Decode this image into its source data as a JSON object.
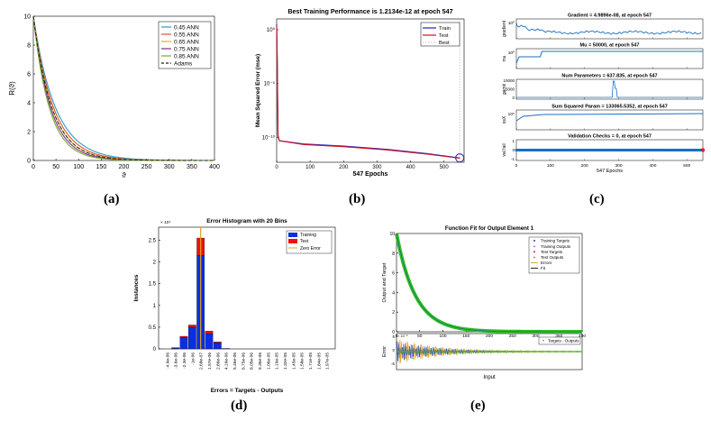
{
  "captions": {
    "a": "(a)",
    "b": "(b)",
    "c": "(c)",
    "d": "(d)",
    "e": "(e)"
  },
  "chart_data": [
    {
      "id": "a",
      "type": "line",
      "title": "",
      "xlabel": "ϑ",
      "ylabel": "R(ϑ)",
      "xlim": [
        0,
        400
      ],
      "ylim": [
        0,
        10
      ],
      "xticks": [
        0,
        50,
        100,
        150,
        200,
        250,
        300,
        350,
        400
      ],
      "yticks": [
        0,
        2,
        4,
        6,
        8,
        10
      ],
      "legend_position": "top-right",
      "series": [
        {
          "name": "0.45 ANN",
          "color": "#2e9ad0",
          "decay": 0.0205
        },
        {
          "name": "0.55 ANN",
          "color": "#d9541a",
          "decay": 0.0225
        },
        {
          "name": "0.65 ANN",
          "color": "#e0b31a",
          "decay": 0.0245
        },
        {
          "name": "0.75 ANN",
          "color": "#7e2f8e",
          "decay": 0.0265
        },
        {
          "name": "0.85 ANN",
          "color": "#77ac30",
          "decay": 0.0285
        },
        {
          "name": "Adams",
          "color": "#222222",
          "dashed": true,
          "decay": 0.0245
        }
      ],
      "start_value": 10
    },
    {
      "id": "b",
      "type": "line",
      "title": "Best Training Performance is 1.2134e-12 at epoch 547",
      "xlabel": "547 Epochs",
      "ylabel": "Mean Squared Error  (mse)",
      "xlim": [
        0,
        560
      ],
      "xticks": [
        0,
        100,
        200,
        300,
        400,
        500
      ],
      "yticks_labels": [
        "10⁰",
        "10⁻⁵",
        "10⁻¹⁰"
      ],
      "ylim_exp": [
        -12.3,
        1
      ],
      "legend": [
        "Train",
        "Test",
        "Best"
      ],
      "train_log": [
        [
          0,
          0.5
        ],
        [
          2,
          -3
        ],
        [
          4,
          -9.8
        ],
        [
          8,
          -10.3
        ],
        [
          80,
          -10.6
        ],
        [
          200,
          -10.8
        ],
        [
          330,
          -11.1
        ],
        [
          450,
          -11.5
        ],
        [
          547,
          -11.9
        ]
      ],
      "test_log": [
        [
          0,
          0.3
        ],
        [
          2,
          -3.2
        ],
        [
          4,
          -9.9
        ],
        [
          8,
          -10.3
        ],
        [
          80,
          -10.65
        ],
        [
          200,
          -10.85
        ],
        [
          330,
          -11.15
        ],
        [
          450,
          -11.55
        ],
        [
          547,
          -11.92
        ]
      ],
      "best_epoch": 547
    },
    {
      "id": "c",
      "type": "line",
      "panels": [
        {
          "title": "Gradient = 4.9896e-08, at epoch 547",
          "ylabel": "gradient",
          "ytick": "10⁰"
        },
        {
          "title": "Mu = 50000, at epoch 547",
          "ylabel": "mu",
          "ytick": "10⁰"
        },
        {
          "title": "Num Parameters = 637.835, at epoch 547",
          "ylabel": "gamk",
          "yticks": [
            "10000",
            "5000",
            "0"
          ]
        },
        {
          "title": "Sum Squared Param = 133065.5352, at epoch 547",
          "ylabel": "ssX",
          "ytick": "10⁵"
        },
        {
          "title": "Validation Checks = 0, at epoch 547",
          "ylabel": "val fail",
          "yticks": [
            "1",
            "0",
            "-1"
          ]
        }
      ],
      "xlim": [
        0,
        547
      ],
      "xticks": [
        0,
        100,
        200,
        300,
        400,
        500
      ],
      "xlabel": "547 Epochs"
    },
    {
      "id": "d",
      "type": "bar",
      "title": "Error Histogram with 20 Bins",
      "ylabel": "Instances",
      "xlabel": "Errors = Targets - Outputs",
      "exponent_label": "× 10⁴",
      "ylim": [
        0,
        2.8
      ],
      "yticks": [
        0,
        0.5,
        1,
        1.5,
        2,
        2.5
      ],
      "categories": [
        "-4.9e-06",
        "-3.6e-06",
        "-2.3e-06",
        "-1e-06",
        "2.68e-07",
        "1.57e-06",
        "2.86e-06",
        "4.16e-06",
        "5.46e-06",
        "6.75e-06",
        "8.05e-06",
        "9.35e-06",
        "1.06e-05",
        "1.19e-05",
        "1.32e-05",
        "1.45e-05",
        "1.58e-05",
        "1.71e-05",
        "1.84e-05",
        "1.97e-05"
      ],
      "series": [
        {
          "name": "Training",
          "color": "#0a2ee0",
          "values": [
            0,
            0.02,
            0.26,
            0.5,
            2.15,
            0.35,
            0.14,
            0.01,
            0,
            0,
            0,
            0,
            0,
            0,
            0,
            0,
            0,
            0,
            0,
            0
          ]
        },
        {
          "name": "Test",
          "color": "#f01010",
          "values": [
            0,
            0.005,
            0.03,
            0.05,
            0.4,
            0.06,
            0.02,
            0,
            0,
            0,
            0,
            0,
            0,
            0,
            0,
            0,
            0,
            0,
            0,
            0
          ]
        }
      ],
      "zero_error": {
        "name": "Zero Error",
        "color": "#e0a020",
        "category_index": 4,
        "height": 2.8
      }
    },
    {
      "id": "e",
      "type": "line",
      "title": "Function Fit for Output Element 1",
      "ylabel": "Output and Target",
      "xlabel": "Input",
      "exponent_label": "× 10⁻⁵",
      "err_ylabel": "Error",
      "xlim": [
        0,
        400
      ],
      "ylim": [
        0,
        10
      ],
      "xticks": [
        0,
        50,
        100,
        150,
        200,
        250,
        300,
        350,
        400
      ],
      "yticks": [
        0,
        2,
        4,
        6,
        8,
        10
      ],
      "err_yticks": [
        "5",
        "0",
        "-5"
      ],
      "decay": 0.0245,
      "legend": [
        {
          "name": "Training Targets",
          "color": "#1f3fd0",
          "marker": "dot"
        },
        {
          "name": "Training Outputs",
          "color": "#1f3fd0",
          "marker": "plus"
        },
        {
          "name": "Test Targets",
          "color": "#d02020",
          "marker": "dot"
        },
        {
          "name": "Test Outputs",
          "color": "#d02020",
          "marker": "plus"
        },
        {
          "name": "Errors",
          "color": "#e0a020",
          "marker": "line"
        },
        {
          "name": "Fit",
          "color": "#222222",
          "marker": "line"
        }
      ],
      "err_legend": "Targets - Outputs"
    }
  ]
}
